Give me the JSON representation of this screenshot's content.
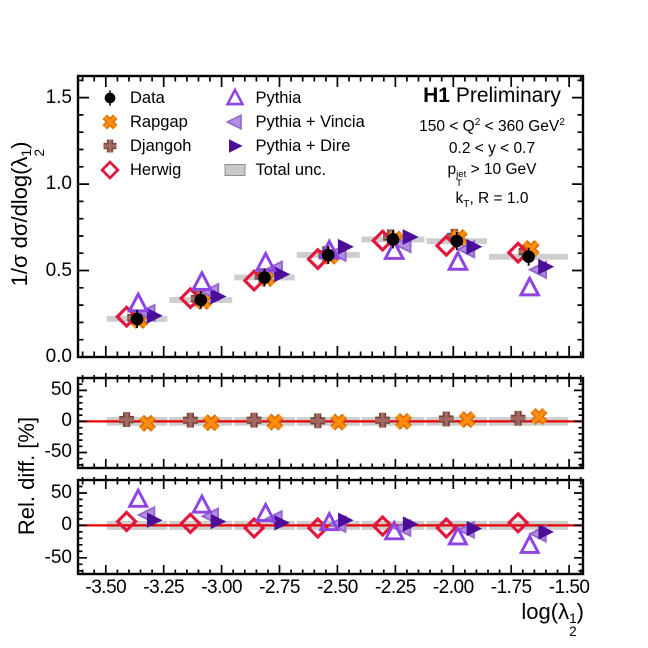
{
  "header": {
    "brand": "H1",
    "status": "Preliminary"
  },
  "conditions": [
    "150 < Q^{2} < 360 GeV^{2}",
    "0.2 < y < 0.7",
    "p_{T}^{jet} > 10 GeV",
    "k_{T}, R = 1.0"
  ],
  "legend": [
    {
      "key": "data",
      "label": "Data"
    },
    {
      "key": "rapgap",
      "label": "Rapgap"
    },
    {
      "key": "djangoh",
      "label": "Djangoh"
    },
    {
      "key": "herwig",
      "label": "Herwig"
    },
    {
      "key": "pythia",
      "label": "Pythia"
    },
    {
      "key": "vincia",
      "label": "Pythia + Vincia"
    },
    {
      "key": "dire",
      "label": "Pythia + Dire"
    },
    {
      "key": "unc",
      "label": "Total unc."
    }
  ],
  "chart_data": {
    "type": "scatter",
    "x_label": "log(λ_{2}^{1})",
    "y_label_main": "1/σ dσ/dlog(λ_{2}^{1})",
    "y_label_ratio": "Rel. diff. [%]",
    "x_range": [
      -3.62,
      -1.44
    ],
    "x_ticks": [
      -3.5,
      -3.25,
      -3.0,
      -2.75,
      -2.5,
      -2.25,
      -2.0,
      -1.75,
      -1.5
    ],
    "x_tick_labels": [
      "-3.50",
      "-3.25",
      "-3.00",
      "-2.75",
      "-2.50",
      "-2.25",
      "-2.00",
      "-1.75",
      "-1.50"
    ],
    "x_minor_step": 0.05,
    "y_main": {
      "range": [
        0,
        1.625
      ],
      "ticks": [
        0.0,
        0.5,
        1.0,
        1.5
      ],
      "labels": [
        "0.0",
        "0.5",
        "1.0",
        "1.5"
      ],
      "minor_step": 0.1
    },
    "y_ratio": {
      "range": [
        -75,
        70
      ],
      "ticks": [
        -50,
        0,
        50
      ],
      "labels": [
        "-50",
        "0",
        "50"
      ],
      "minor_step": 10
    },
    "grid": false,
    "legend_position": "top-left-inside",
    "bin_edges": [
      -3.5,
      -3.23,
      -2.95,
      -2.68,
      -2.4,
      -2.12,
      -1.85,
      -1.5
    ],
    "bin_centers": [
      -3.365,
      -3.09,
      -2.815,
      -2.54,
      -2.26,
      -1.985,
      -1.675
    ],
    "marker_x_offsets": {
      "data": 0,
      "rapgap": 0.01,
      "djangoh": -0.01,
      "herwig": -0.045,
      "pythia": 0.005,
      "vincia": 0.045,
      "dire": 0.072
    },
    "ratio_x_offsets_mc": {
      "djangoh": -0.045,
      "rapgap": 0.045
    },
    "series": {
      "data": {
        "label": "Data",
        "color": "#000000",
        "values": [
          0.22,
          0.33,
          0.46,
          0.59,
          0.68,
          0.67,
          0.58
        ]
      },
      "rapgap": {
        "label": "Rapgap",
        "color": "#ff8c0f",
        "color2": "#d96f00",
        "values": [
          0.213,
          0.323,
          0.455,
          0.584,
          0.68,
          0.69,
          0.626
        ],
        "rel_diff": [
          -3,
          -2,
          -1,
          -1,
          0,
          3,
          8
        ]
      },
      "djangoh": {
        "label": "Djangoh",
        "color": "#a3685f",
        "color2": "#72453c",
        "values": [
          0.227,
          0.337,
          0.469,
          0.596,
          0.694,
          0.697,
          0.609
        ],
        "rel_diff": [
          3,
          2,
          2,
          1,
          2,
          4,
          5
        ]
      },
      "herwig": {
        "label": "Herwig",
        "color": "#e3173e",
        "values": [
          0.233,
          0.34,
          0.442,
          0.566,
          0.673,
          0.643,
          0.603
        ],
        "rel_diff": [
          6,
          3,
          -4,
          -4,
          -1,
          -4,
          4
        ]
      },
      "pythia": {
        "label": "Pythia",
        "color": "#8d44e3",
        "values": [
          0.308,
          0.432,
          0.543,
          0.614,
          0.612,
          0.549,
          0.4
        ],
        "rel_diff": [
          40,
          31,
          18,
          4,
          -10,
          -18,
          -31
        ]
      },
      "vincia": {
        "label": "Pythia + Vincia",
        "color": "#b18fe0",
        "color2": "#9468cf",
        "values": [
          0.255,
          0.376,
          0.506,
          0.602,
          0.653,
          0.623,
          0.505
        ],
        "rel_diff": [
          16,
          14,
          10,
          2,
          -4,
          -7,
          -13
        ]
      },
      "dire": {
        "label": "Pythia + Dire",
        "color": "#4c0e99",
        "values": [
          0.238,
          0.35,
          0.478,
          0.637,
          0.694,
          0.637,
          0.522
        ],
        "rel_diff": [
          8,
          6,
          4,
          8,
          2,
          -5,
          -10
        ]
      }
    },
    "total_unc": {
      "label": "Total unc.",
      "band_color": "#c9c9c9",
      "main_half_value": 0.017,
      "ratio_half_pct": 7
    },
    "zero_line_color": "#e60000"
  }
}
